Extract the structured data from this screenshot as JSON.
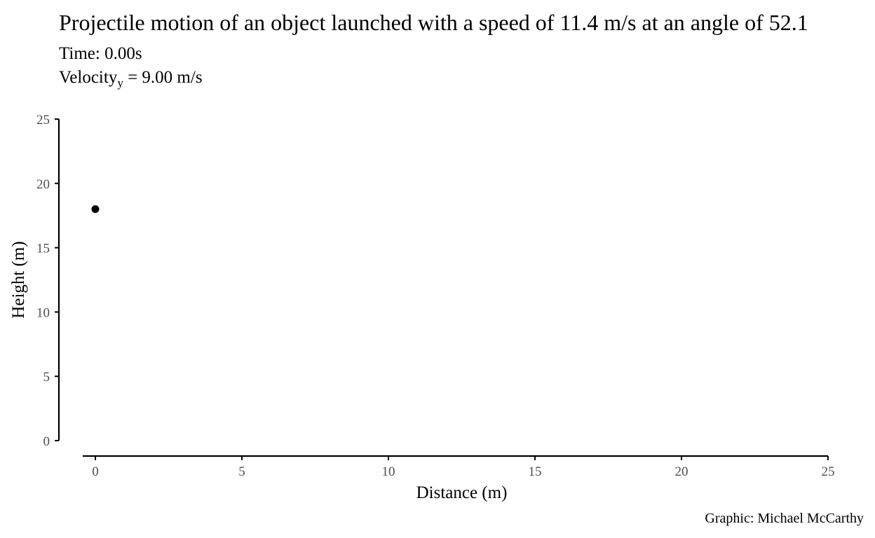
{
  "chart_data": {
    "type": "scatter",
    "title": "Projectile motion of an object launched with a speed of 11.4 m/s at an angle of 52.1",
    "subtitle": {
      "time": "Time: 0.00s",
      "velocity_prefix": "Velocity",
      "velocity_sub": "y",
      "velocity_suffix": " = 9.00 m/s"
    },
    "xlabel": "Distance (m)",
    "ylabel": "Height (m)",
    "caption": "Graphic: Michael McCarthy",
    "xlim": [
      0,
      25
    ],
    "ylim": [
      0,
      25
    ],
    "x_ticks": [
      "0",
      "5",
      "10",
      "15",
      "20",
      "25"
    ],
    "y_ticks": [
      "0",
      "5",
      "10",
      "15",
      "20",
      "25"
    ],
    "points": [
      {
        "x": 0,
        "y": 18
      }
    ],
    "grid": false,
    "point_color": "#000000"
  }
}
